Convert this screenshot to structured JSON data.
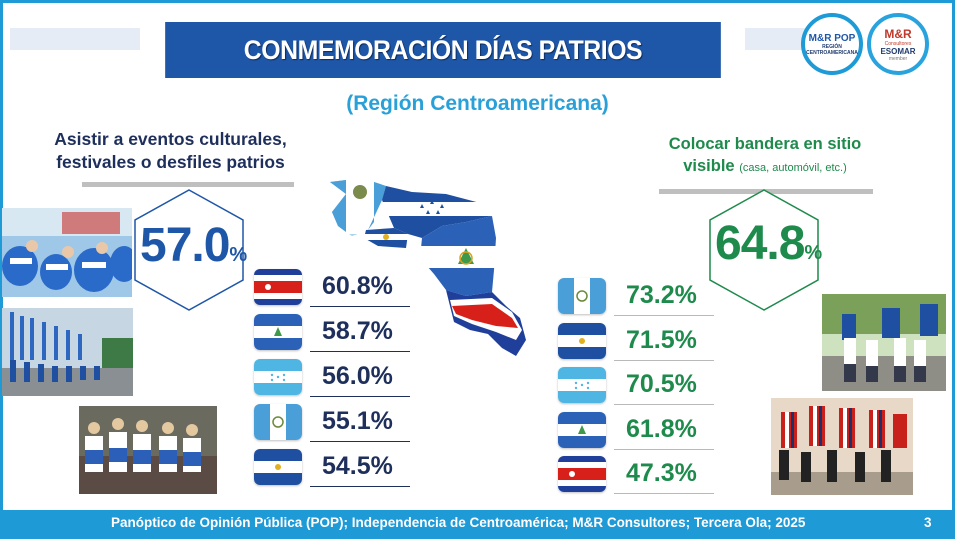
{
  "header": {
    "title": "CONMEMORACIÓN DÍAS PATRIOS",
    "subtitle": "(Región Centroamericana)"
  },
  "logos": {
    "pop": {
      "main": "M&R POP",
      "sub1": "REGIÓN",
      "sub2": "CENTROAMERICANA"
    },
    "mr": {
      "main": "M&R",
      "sub": "Consultores",
      "esomar": "ESOMAR",
      "member": "member"
    }
  },
  "left_panel": {
    "title_line1": "Asistir a eventos culturales,",
    "title_line2": "festivales o desfiles patrios",
    "total_value": "57.0",
    "total_unit": "%",
    "rows": [
      {
        "country": "Costa Rica",
        "flag": "costa-rica-flag-icon",
        "value": "60.8%"
      },
      {
        "country": "Nicaragua",
        "flag": "nicaragua-flag-icon",
        "value": "58.7%"
      },
      {
        "country": "Honduras",
        "flag": "honduras-flag-icon",
        "value": "56.0%"
      },
      {
        "country": "Guatemala",
        "flag": "guatemala-flag-icon",
        "value": "55.1%"
      },
      {
        "country": "El Salvador",
        "flag": "el-salvador-flag-icon",
        "value": "54.5%"
      }
    ]
  },
  "right_panel": {
    "title_line1": "Colocar bandera en sitio",
    "title_line2": "visible",
    "title_note": "(casa, automóvil,  etc.)",
    "total_value": "64.8",
    "total_unit": "%",
    "rows": [
      {
        "country": "Guatemala",
        "flag": "guatemala-flag-icon",
        "value": "73.2%"
      },
      {
        "country": "El Salvador",
        "flag": "el-salvador-flag-icon",
        "value": "71.5%"
      },
      {
        "country": "Honduras",
        "flag": "honduras-flag-icon",
        "value": "70.5%"
      },
      {
        "country": "Nicaragua",
        "flag": "nicaragua-flag-icon",
        "value": "61.8%"
      },
      {
        "country": "Costa Rica",
        "flag": "costa-rica-flag-icon",
        "value": "47.3%"
      }
    ]
  },
  "colors": {
    "brand_blue": "#1f57a8",
    "accent_cyan": "#1e9ad6",
    "left_accent": "#1f57a8",
    "right_accent": "#1e8a4c"
  },
  "footer": {
    "source": "Panóptico de Opinión Pública (POP); Independencia de Centroamérica; M&R Consultores; Tercera Ola; 2025",
    "page_number": "3"
  }
}
